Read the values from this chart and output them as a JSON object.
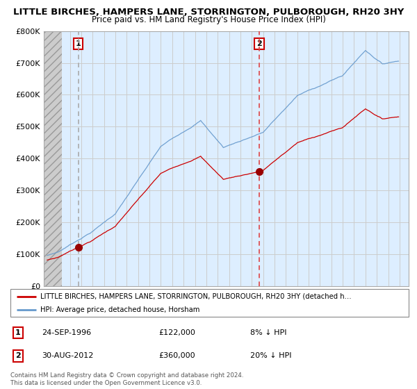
{
  "title": "LITTLE BIRCHES, HAMPERS LANE, STORRINGTON, PULBOROUGH, RH20 3HY",
  "subtitle": "Price paid vs. HM Land Registry's House Price Index (HPI)",
  "ylim": [
    0,
    800000
  ],
  "yticks": [
    0,
    100000,
    200000,
    300000,
    400000,
    500000,
    600000,
    700000,
    800000
  ],
  "ytick_labels": [
    "£0",
    "£100K",
    "£200K",
    "£300K",
    "£400K",
    "£500K",
    "£600K",
    "£700K",
    "£800K"
  ],
  "xlim_start": 1993.7,
  "xlim_end": 2025.8,
  "hatch_end": 1995.3,
  "sale1_x": 1996.73,
  "sale1_y": 122000,
  "sale1_label": "1",
  "sale2_x": 2012.66,
  "sale2_y": 360000,
  "sale2_label": "2",
  "line_color_hpi": "#6699cc",
  "line_color_price": "#cc0000",
  "marker_color": "#990000",
  "sale1_vline_color": "#aaaaaa",
  "sale2_vline_color": "#dd4444",
  "grid_color": "#cccccc",
  "chart_bg_color": "#ddeeff",
  "hatch_bg_color": "#cccccc",
  "legend_line1": "LITTLE BIRCHES, HAMPERS LANE, STORRINGTON, PULBOROUGH, RH20 3HY (detached h…",
  "legend_line2": "HPI: Average price, detached house, Horsham",
  "table_rows": [
    {
      "num": "1",
      "date": "24-SEP-1996",
      "price": "£122,000",
      "hpi": "8% ↓ HPI"
    },
    {
      "num": "2",
      "date": "30-AUG-2012",
      "price": "£360,000",
      "hpi": "20% ↓ HPI"
    }
  ],
  "footer": "Contains HM Land Registry data © Crown copyright and database right 2024.\nThis data is licensed under the Open Government Licence v3.0.",
  "title_fontsize": 9.5,
  "subtitle_fontsize": 8.5
}
